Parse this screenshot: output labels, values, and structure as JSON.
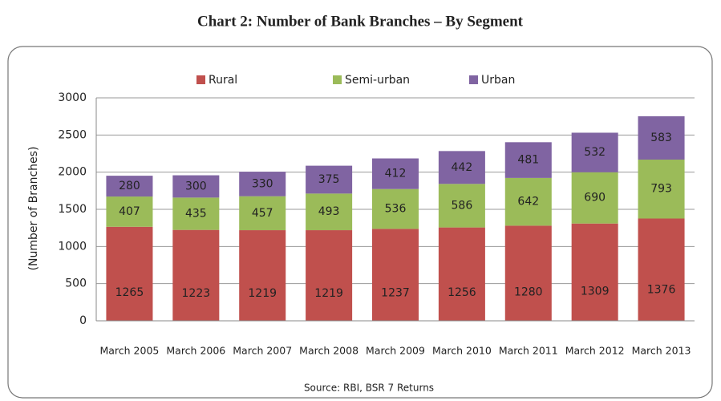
{
  "chart_data": {
    "type": "stacked_bar",
    "title": "Chart 2: Number of Bank Branches – By Segment",
    "y_label": "(Number of Branches)",
    "source": "Source: RBI, BSR 7 Returns",
    "categories": [
      "March 2005",
      "March 2006",
      "March 2007",
      "March 2008",
      "March 2009",
      "March 2010",
      "March 2011",
      "March 2012",
      "March 2013"
    ],
    "series": [
      {
        "name": "Rural",
        "color": "#c0504d",
        "values": [
          1265,
          1223,
          1219,
          1219,
          1237,
          1256,
          1280,
          1309,
          1376
        ]
      },
      {
        "name": "Semi-urban",
        "color": "#9bbb59",
        "values": [
          407,
          435,
          457,
          493,
          536,
          586,
          642,
          690,
          793
        ]
      },
      {
        "name": "Urban",
        "color": "#8064a2",
        "values": [
          280,
          300,
          330,
          375,
          412,
          442,
          481,
          532,
          583
        ]
      }
    ],
    "ylim": [
      0,
      3000
    ],
    "yticks": [
      0,
      500,
      1000,
      1500,
      2000,
      2500,
      3000
    ],
    "grid": true,
    "legend": "top"
  }
}
